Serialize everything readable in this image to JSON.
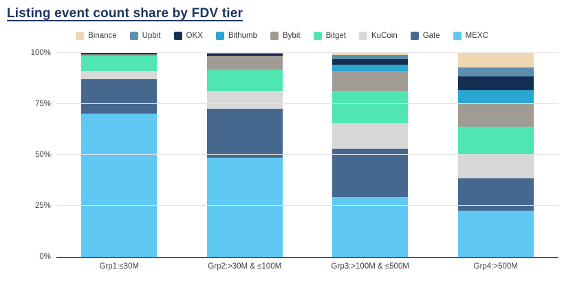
{
  "title": "Listing event count share by FDV tier",
  "colors": {
    "title": "#1b3561",
    "axis_label": "#3f3f3f",
    "axis_line": "#54585b",
    "gridline": "#e4e4e4",
    "background": "#ffffff"
  },
  "chart_data": {
    "type": "bar",
    "stacked": true,
    "orientation": "vertical",
    "title": "Listing event count share by FDV tier",
    "xlabel": "",
    "ylabel": "",
    "unit": "%",
    "ylim": [
      0,
      100
    ],
    "grid": true,
    "legend_position": "top-center",
    "y_ticks": [
      "0%",
      "25%",
      "50%",
      "75%",
      "100%"
    ],
    "categories": [
      "Grp1:≤30M",
      "Grp2:>30M & ≤100M",
      "Grp3:>100M & ≤500M",
      "Grp4:>500M"
    ],
    "series": [
      {
        "name": "Binance",
        "color": "#eed7b2",
        "values": [
          0,
          0,
          1.0,
          7.1
        ]
      },
      {
        "name": "Upbit",
        "color": "#5b8fad",
        "values": [
          0,
          0.4,
          2.0,
          4.5
        ]
      },
      {
        "name": "OKX",
        "color": "#152f52",
        "values": [
          0.5,
          1.0,
          2.6,
          6.6
        ]
      },
      {
        "name": "Bithumb",
        "color": "#2aa7d1",
        "values": [
          0,
          0,
          3.1,
          6.5
        ]
      },
      {
        "name": "Bybit",
        "color": "#a19c93",
        "values": [
          1.0,
          6.6,
          10.0,
          11.3
        ]
      },
      {
        "name": "Bitget",
        "color": "#4fe6b1",
        "values": [
          7.3,
          10.5,
          15.6,
          13.6
        ]
      },
      {
        "name": "KuCoin",
        "color": "#d8d8d8",
        "values": [
          4.0,
          9.0,
          12.8,
          11.9
        ]
      },
      {
        "name": "Gate",
        "color": "#46688f",
        "values": [
          17.0,
          24.0,
          23.4,
          15.8
        ]
      },
      {
        "name": "MEXC",
        "color": "#5fc9f4",
        "values": [
          70.2,
          48.5,
          29.5,
          22.7
        ]
      }
    ],
    "stack_order_bottom_to_top": [
      "MEXC",
      "Gate",
      "KuCoin",
      "Bitget",
      "Bybit",
      "Bithumb",
      "OKX",
      "Upbit",
      "Binance"
    ]
  }
}
